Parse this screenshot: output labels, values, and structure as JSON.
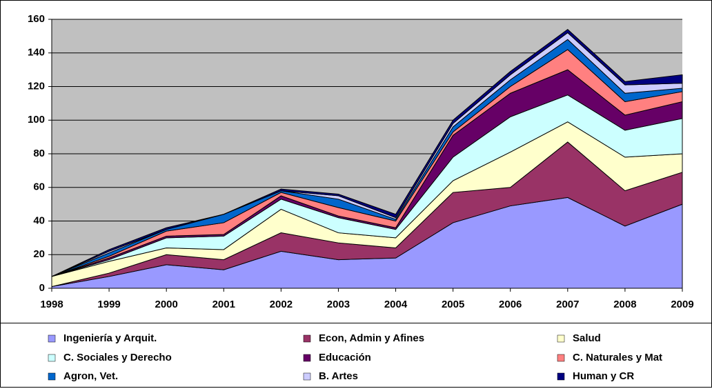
{
  "chart_data": {
    "type": "stacked_area",
    "categories": [
      "1998",
      "1999",
      "2000",
      "2001",
      "2002",
      "2003",
      "2004",
      "2005",
      "2006",
      "2007",
      "2008",
      "2009"
    ],
    "series": [
      {
        "name": "Ingeniería y Arquit.",
        "color": "#9999ff",
        "values": [
          1,
          7,
          14,
          11,
          22,
          17,
          18,
          39,
          49,
          54,
          37,
          50
        ]
      },
      {
        "name": "Econ, Admin y Afines",
        "color": "#993366",
        "values": [
          0,
          2,
          6,
          6,
          11,
          10,
          6,
          18,
          11,
          33,
          21,
          19
        ]
      },
      {
        "name": "Salud",
        "color": "#ffffcc",
        "values": [
          6,
          7,
          4,
          6,
          14,
          6,
          6,
          7,
          21,
          12,
          20,
          11
        ]
      },
      {
        "name": "C. Sociales y Derecho",
        "color": "#ccffff",
        "values": [
          0,
          1,
          6,
          8,
          6,
          9,
          5,
          14,
          21,
          16,
          16,
          21
        ]
      },
      {
        "name": "Educación",
        "color": "#660066",
        "values": [
          0,
          1,
          1,
          1,
          2,
          1,
          1,
          13,
          14,
          15,
          9,
          10
        ]
      },
      {
        "name": "C. Naturales y Mat",
        "color": "#ff8080",
        "values": [
          0,
          1,
          3,
          7,
          2,
          5,
          4,
          2,
          4,
          12,
          8,
          6
        ]
      },
      {
        "name": "Agron, Vet.",
        "color": "#0066cc",
        "values": [
          0,
          2,
          1,
          5,
          1,
          5,
          1,
          3,
          4,
          6,
          5,
          2
        ]
      },
      {
        "name": "B. Artes",
        "color": "#ccccff",
        "values": [
          0,
          1,
          0,
          0,
          0,
          2,
          1,
          2,
          3,
          4,
          5,
          3
        ]
      },
      {
        "name": "Human y CR",
        "color": "#000080",
        "values": [
          0,
          1,
          1,
          0,
          1,
          1,
          2,
          2,
          2,
          2,
          2,
          5
        ]
      }
    ],
    "ylim": [
      0,
      160
    ],
    "yticks": [
      0,
      20,
      40,
      60,
      80,
      100,
      120,
      140,
      160
    ],
    "grid": true,
    "plot_background": "#c0c0c0",
    "legend": "bottom"
  }
}
